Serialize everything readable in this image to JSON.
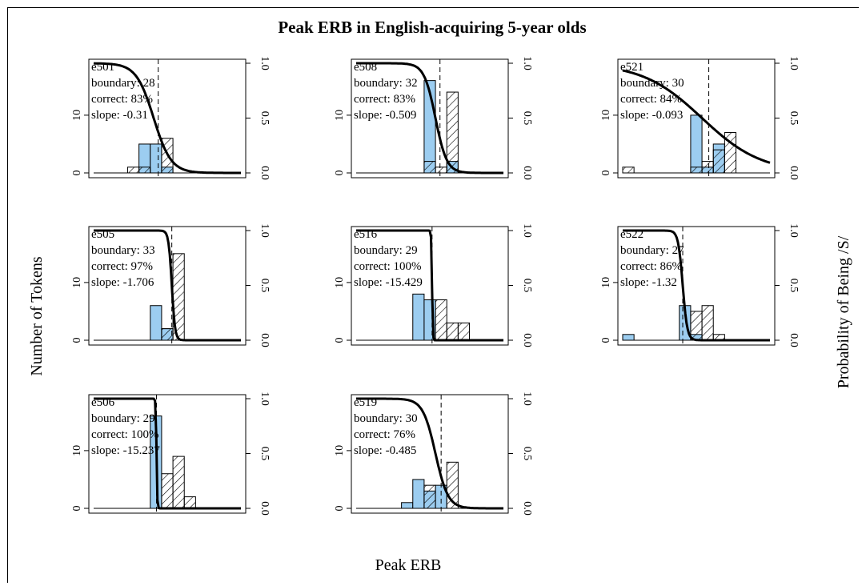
{
  "title": "Peak ERB in English-acquiring 5-year olds",
  "xlabel": "Peak ERB",
  "ylabel_left": "Number of Tokens",
  "ylabel_right": "Probability of Being /S/",
  "colors": {
    "blue": "#9ccdf0",
    "hatch": "#000000",
    "curve": "#000000",
    "frame": "#000000"
  },
  "chart_data": {
    "type": "bar",
    "title": "Peak ERB in English-acquiring 5-year olds",
    "xlabel": "Peak ERB",
    "ylabel": "Number of Tokens",
    "ylabel_right": "Probability of Being /S/",
    "grid": false,
    "layout": "3 columns x 3 rows (8 panels)",
    "bin_index_range": [
      0,
      13
    ],
    "ylim_left": [
      0,
      19
    ],
    "ylim_right": [
      0,
      1.0
    ],
    "left_ticks": [
      "0",
      "10"
    ],
    "right_ticks": [
      "0.0",
      "0.5",
      "1.0"
    ],
    "panels": [
      {
        "id": "e501",
        "boundary": "28",
        "correct": "83%",
        "slope": "-0.31",
        "boundary_pos": 5.7,
        "curve_mid": 5.3,
        "curve_k": 1.3,
        "blue": [
          [
            4,
            1,
            5
          ],
          [
            5,
            1,
            5
          ],
          [
            6,
            1,
            1
          ]
        ],
        "hatched": [
          [
            3,
            1,
            1
          ],
          [
            4,
            1,
            1
          ],
          [
            6,
            1,
            6
          ]
        ]
      },
      {
        "id": "e508",
        "boundary": "32",
        "correct": "83%",
        "slope": "-0.509",
        "boundary_pos": 7.4,
        "curve_mid": 7.0,
        "curve_k": 2.0,
        "blue": [
          [
            6,
            1,
            16
          ],
          [
            8,
            1,
            2
          ]
        ],
        "hatched": [
          [
            6,
            1,
            2
          ],
          [
            7,
            1,
            1
          ],
          [
            8,
            1,
            14
          ]
        ]
      },
      {
        "id": "e521",
        "boundary": "30",
        "correct": "84%",
        "slope": "-0.093",
        "boundary_pos": 7.6,
        "curve_mid": 7.0,
        "curve_k": 0.38,
        "blue": [
          [
            6,
            1,
            10
          ],
          [
            7,
            1,
            1
          ],
          [
            8,
            1,
            5
          ]
        ],
        "hatched": [
          [
            0,
            1,
            1
          ],
          [
            6,
            1,
            1
          ],
          [
            7,
            1,
            2
          ],
          [
            8,
            1,
            4
          ],
          [
            9,
            1,
            7
          ]
        ]
      },
      {
        "id": "e505",
        "boundary": "33",
        "correct": "97%",
        "slope": "-1.706",
        "boundary_pos": 6.9,
        "curve_mid": 6.9,
        "curve_k": 7.0,
        "blue": [
          [
            5,
            1,
            6
          ],
          [
            6,
            1,
            2
          ]
        ],
        "hatched": [
          [
            6,
            1,
            2
          ],
          [
            7,
            1,
            15
          ]
        ]
      },
      {
        "id": "e516",
        "boundary": "29",
        "correct": "100%",
        "slope": "-15.429",
        "boundary_pos": 6.7,
        "curve_mid": 6.7,
        "curve_k": 30.0,
        "blue": [
          [
            5,
            1,
            8
          ],
          [
            6,
            1,
            7
          ]
        ],
        "hatched": [
          [
            7,
            1,
            7
          ],
          [
            8,
            1,
            3
          ],
          [
            9,
            1,
            3
          ]
        ]
      },
      {
        "id": "e522",
        "boundary": "27",
        "correct": "86%",
        "slope": "-1.32",
        "boundary_pos": 5.3,
        "curve_mid": 5.3,
        "curve_k": 5.0,
        "blue": [
          [
            0,
            1,
            1
          ],
          [
            5,
            1,
            6
          ],
          [
            6,
            1,
            1
          ]
        ],
        "hatched": [
          [
            6,
            1,
            5
          ],
          [
            7,
            1,
            6
          ],
          [
            8,
            1,
            1
          ]
        ]
      },
      {
        "id": "e506",
        "boundary": "29",
        "correct": "100%",
        "slope": "-15.237",
        "boundary_pos": 5.55,
        "curve_mid": 5.55,
        "curve_k": 30.0,
        "blue": [
          [
            5,
            1,
            16
          ]
        ],
        "hatched": [
          [
            6,
            1,
            6
          ],
          [
            7,
            1,
            9
          ],
          [
            8,
            1,
            2
          ]
        ]
      },
      {
        "id": "e519",
        "boundary": "30",
        "correct": "76%",
        "slope": "-0.485",
        "boundary_pos": 7.5,
        "curve_mid": 7.0,
        "curve_k": 1.8,
        "blue": [
          [
            4,
            1,
            1
          ],
          [
            5,
            1,
            5
          ],
          [
            6,
            1,
            3
          ],
          [
            7,
            1,
            4
          ]
        ],
        "hatched": [
          [
            6,
            1,
            4
          ],
          [
            8,
            1,
            8
          ]
        ]
      }
    ]
  }
}
